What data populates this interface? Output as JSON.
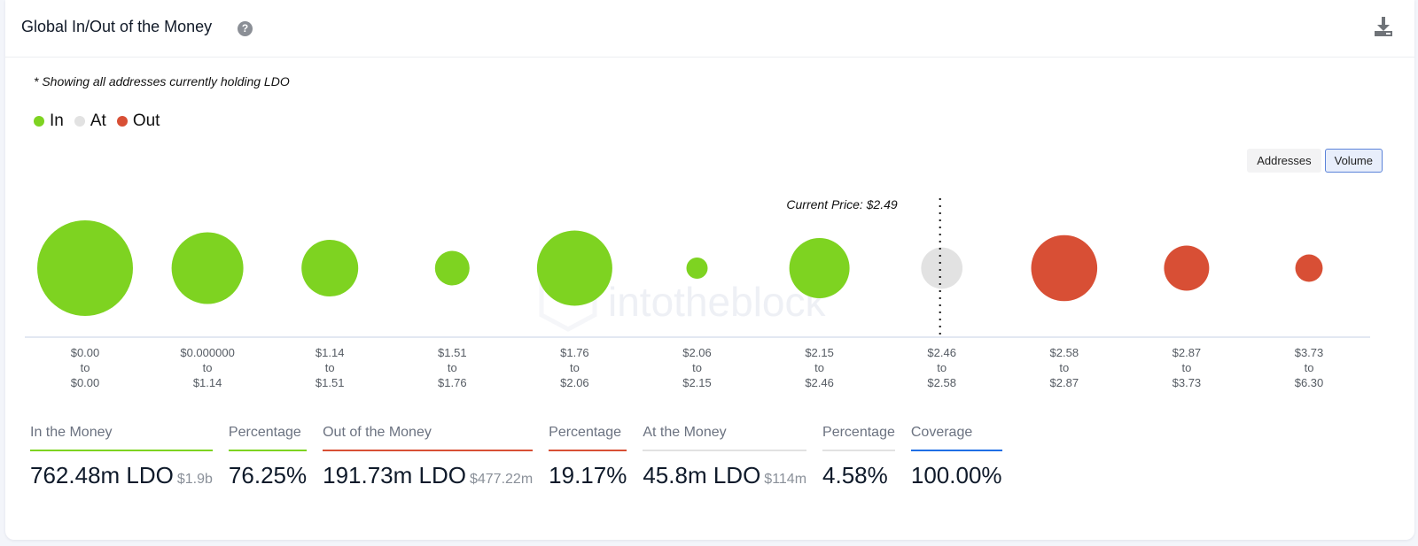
{
  "header": {
    "title": "Global In/Out of the Money",
    "help_icon": "question-circle-icon",
    "download_icon": "download-icon"
  },
  "note": "* Showing all addresses currently holding LDO",
  "legend": [
    {
      "label": "In",
      "color": "#7ed321"
    },
    {
      "label": "At",
      "color": "#e2e2e2"
    },
    {
      "label": "Out",
      "color": "#d84f35"
    }
  ],
  "toggle": {
    "options": [
      "Addresses",
      "Volume"
    ],
    "selected": "Volume"
  },
  "watermark": "intotheblock",
  "chart_data": {
    "type": "bubble",
    "title": "Global In/Out of the Money",
    "metric": "Volume (LDO)",
    "current_price_label": "Current Price: $2.49",
    "current_price": 2.49,
    "colors": {
      "In": "#7ed321",
      "At": "#e2e2e2",
      "Out": "#d84f35"
    },
    "categories": [
      {
        "from": "$0.00",
        "to": "$0.00"
      },
      {
        "from": "$0.000000",
        "to": "$1.14"
      },
      {
        "from": "$1.14",
        "to": "$1.51"
      },
      {
        "from": "$1.51",
        "to": "$1.76"
      },
      {
        "from": "$1.76",
        "to": "$2.06"
      },
      {
        "from": "$2.06",
        "to": "$2.15"
      },
      {
        "from": "$2.15",
        "to": "$2.46"
      },
      {
        "from": "$2.46",
        "to": "$2.58"
      },
      {
        "from": "$2.58",
        "to": "$2.87"
      },
      {
        "from": "$2.87",
        "to": "$3.73"
      },
      {
        "from": "$3.73",
        "to": "$6.30"
      }
    ],
    "status": [
      "In",
      "In",
      "In",
      "In",
      "In",
      "In",
      "In",
      "At",
      "Out",
      "Out",
      "Out"
    ],
    "values_m_ldo": [
      245.2,
      137.9,
      86.1,
      32.0,
      151.9,
      12.1,
      97.2,
      45.8,
      117.0,
      54.6,
      20.1
    ],
    "separator_word": "to"
  },
  "stats": [
    {
      "label": "In the Money",
      "value": "762.48m LDO",
      "sub": "$1.9b",
      "color": "#7ed321"
    },
    {
      "label": "Percentage",
      "value": "76.25%",
      "sub": "",
      "color": "#7ed321"
    },
    {
      "label": "Out of the Money",
      "value": "191.73m LDO",
      "sub": "$477.22m",
      "color": "#d84f35"
    },
    {
      "label": "Percentage",
      "value": "19.17%",
      "sub": "",
      "color": "#d84f35"
    },
    {
      "label": "At the Money",
      "value": "45.8m LDO",
      "sub": "$114m",
      "color": "#e2e2e2"
    },
    {
      "label": "Percentage",
      "value": "4.58%",
      "sub": "",
      "color": "#e2e2e2"
    },
    {
      "label": "Coverage",
      "value": "100.00%",
      "sub": "",
      "color": "#1f6fe5"
    }
  ]
}
